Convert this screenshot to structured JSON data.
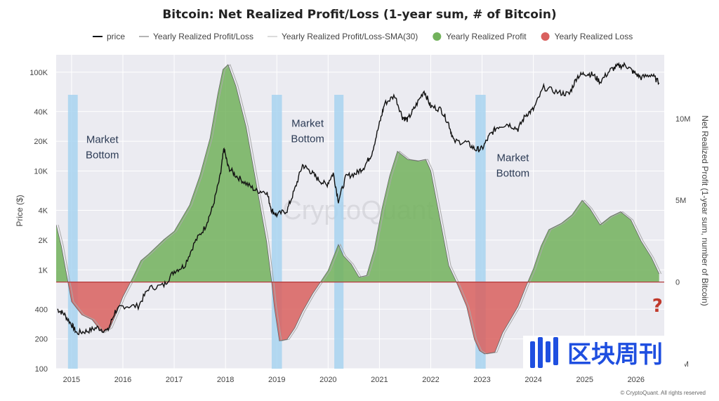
{
  "chart_data": {
    "type": "area",
    "title": "Bitcoin: Net Realized Profit/Loss (1-year sum, # of Bitcoin)",
    "legend": [
      {
        "label": "price",
        "color": "#111111",
        "kind": "line"
      },
      {
        "label": "Yearly Realized Profit/Loss",
        "color": "#9a9a9a",
        "kind": "line"
      },
      {
        "label": "Yearly Realized Profit/Loss-SMA(30)",
        "color": "#cfcfcf",
        "kind": "line"
      },
      {
        "label": "Yearly Realized Profit",
        "color": "#72b25c",
        "kind": "dot"
      },
      {
        "label": "Yearly Realized Loss",
        "color": "#d9605e",
        "kind": "dot"
      }
    ],
    "legend_position": "top",
    "y_left_label": "Price ($)",
    "y_right_label": "Net Realized Profit (1-year sum, number of Bitcoin)",
    "x_ticks": [
      "2015",
      "2016",
      "2017",
      "2018",
      "2019",
      "2020",
      "2021",
      "2022",
      "2023",
      "2024",
      "2025",
      "2026"
    ],
    "y_left_ticks": [
      {
        "label": "100K",
        "value": 100000
      },
      {
        "label": "40K",
        "value": 40000
      },
      {
        "label": "20K",
        "value": 20000
      },
      {
        "label": "10K",
        "value": 10000
      },
      {
        "label": "4K",
        "value": 4000
      },
      {
        "label": "2K",
        "value": 2000
      },
      {
        "label": "1K",
        "value": 1000
      },
      {
        "label": "400",
        "value": 400
      },
      {
        "label": "200",
        "value": 200
      },
      {
        "label": "100",
        "value": 100
      }
    ],
    "y_left_scale": "log",
    "y_left_range": [
      100,
      150000
    ],
    "y_right_ticks": [
      {
        "label": "10M",
        "value": 10000000
      },
      {
        "label": "5M",
        "value": 5000000
      },
      {
        "label": "0",
        "value": 0
      },
      {
        "label": "-5M",
        "value": -5000000
      }
    ],
    "y_right_range": [
      -5300000,
      13900000
    ],
    "x_range": [
      2014.7,
      2026.55
    ],
    "price": [
      [
        2014.72,
        400
      ],
      [
        2014.85,
        360
      ],
      [
        2015.0,
        280
      ],
      [
        2015.1,
        230
      ],
      [
        2015.3,
        240
      ],
      [
        2015.5,
        260
      ],
      [
        2015.7,
        240
      ],
      [
        2015.85,
        380
      ],
      [
        2016.0,
        430
      ],
      [
        2016.3,
        430
      ],
      [
        2016.5,
        650
      ],
      [
        2016.8,
        700
      ],
      [
        2017.0,
        970
      ],
      [
        2017.2,
        1100
      ],
      [
        2017.4,
        1900
      ],
      [
        2017.6,
        2700
      ],
      [
        2017.75,
        4300
      ],
      [
        2017.9,
        9000
      ],
      [
        2017.97,
        17000
      ],
      [
        2018.05,
        11000
      ],
      [
        2018.2,
        9000
      ],
      [
        2018.4,
        7500
      ],
      [
        2018.6,
        6300
      ],
      [
        2018.8,
        6200
      ],
      [
        2018.9,
        4000
      ],
      [
        2019.0,
        3600
      ],
      [
        2019.2,
        4000
      ],
      [
        2019.35,
        6500
      ],
      [
        2019.5,
        11500
      ],
      [
        2019.65,
        10000
      ],
      [
        2019.8,
        8300
      ],
      [
        2019.97,
        7200
      ],
      [
        2020.1,
        9500
      ],
      [
        2020.2,
        5000
      ],
      [
        2020.35,
        8800
      ],
      [
        2020.55,
        9500
      ],
      [
        2020.7,
        11000
      ],
      [
        2020.85,
        15000
      ],
      [
        2021.0,
        30000
      ],
      [
        2021.1,
        48000
      ],
      [
        2021.3,
        58000
      ],
      [
        2021.45,
        35000
      ],
      [
        2021.55,
        33000
      ],
      [
        2021.7,
        45000
      ],
      [
        2021.87,
        65000
      ],
      [
        2022.0,
        45000
      ],
      [
        2022.2,
        42000
      ],
      [
        2022.35,
        30000
      ],
      [
        2022.45,
        20000
      ],
      [
        2022.7,
        19500
      ],
      [
        2022.87,
        16500
      ],
      [
        2023.0,
        16800
      ],
      [
        2023.15,
        23000
      ],
      [
        2023.3,
        28000
      ],
      [
        2023.5,
        30000
      ],
      [
        2023.7,
        26500
      ],
      [
        2023.85,
        37000
      ],
      [
        2024.0,
        42000
      ],
      [
        2024.2,
        70000
      ],
      [
        2024.5,
        62000
      ],
      [
        2024.7,
        60000
      ],
      [
        2024.85,
        90000
      ],
      [
        2025.0,
        97000
      ],
      [
        2025.15,
        95000
      ],
      [
        2025.3,
        80000
      ],
      [
        2025.5,
        105000
      ],
      [
        2025.65,
        115000
      ],
      [
        2025.8,
        118000
      ],
      [
        2025.95,
        100000
      ],
      [
        2026.1,
        88000
      ],
      [
        2026.3,
        95000
      ],
      [
        2026.45,
        78000
      ]
    ],
    "net_realized_pl": [
      [
        2014.7,
        3500000
      ],
      [
        2014.8,
        2200000
      ],
      [
        2014.9,
        500000
      ],
      [
        2015.0,
        -1200000
      ],
      [
        2015.2,
        -2000000
      ],
      [
        2015.4,
        -2300000
      ],
      [
        2015.6,
        -3100000
      ],
      [
        2015.75,
        -2800000
      ],
      [
        2015.9,
        -1700000
      ],
      [
        2016.0,
        -900000
      ],
      [
        2016.1,
        -300000
      ],
      [
        2016.2,
        300000
      ],
      [
        2016.35,
        1300000
      ],
      [
        2016.5,
        1700000
      ],
      [
        2016.8,
        2600000
      ],
      [
        2017.0,
        3100000
      ],
      [
        2017.3,
        4700000
      ],
      [
        2017.5,
        6500000
      ],
      [
        2017.7,
        8800000
      ],
      [
        2017.85,
        11500000
      ],
      [
        2017.95,
        13000000
      ],
      [
        2018.05,
        13300000
      ],
      [
        2018.2,
        12000000
      ],
      [
        2018.4,
        9500000
      ],
      [
        2018.6,
        6000000
      ],
      [
        2018.8,
        2500000
      ],
      [
        2018.9,
        0
      ],
      [
        2018.95,
        -1500000
      ],
      [
        2019.05,
        -3600000
      ],
      [
        2019.2,
        -3500000
      ],
      [
        2019.35,
        -2800000
      ],
      [
        2019.5,
        -1800000
      ],
      [
        2019.7,
        -700000
      ],
      [
        2019.85,
        0
      ],
      [
        2020.0,
        700000
      ],
      [
        2020.1,
        1500000
      ],
      [
        2020.2,
        2300000
      ],
      [
        2020.3,
        1600000
      ],
      [
        2020.45,
        1100000
      ],
      [
        2020.6,
        300000
      ],
      [
        2020.75,
        400000
      ],
      [
        2020.9,
        2000000
      ],
      [
        2021.05,
        4500000
      ],
      [
        2021.2,
        6500000
      ],
      [
        2021.35,
        8000000
      ],
      [
        2021.55,
        7500000
      ],
      [
        2021.75,
        7400000
      ],
      [
        2021.9,
        7500000
      ],
      [
        2022.0,
        6800000
      ],
      [
        2022.2,
        3500000
      ],
      [
        2022.35,
        1000000
      ],
      [
        2022.5,
        0
      ],
      [
        2022.7,
        -1500000
      ],
      [
        2022.85,
        -3500000
      ],
      [
        2022.95,
        -4200000
      ],
      [
        2023.05,
        -4400000
      ],
      [
        2023.25,
        -4300000
      ],
      [
        2023.4,
        -3100000
      ],
      [
        2023.55,
        -2300000
      ],
      [
        2023.7,
        -1500000
      ],
      [
        2023.85,
        -300000
      ],
      [
        2024.0,
        800000
      ],
      [
        2024.15,
        2200000
      ],
      [
        2024.3,
        3200000
      ],
      [
        2024.55,
        3600000
      ],
      [
        2024.75,
        4100000
      ],
      [
        2024.95,
        5000000
      ],
      [
        2025.1,
        4500000
      ],
      [
        2025.3,
        3500000
      ],
      [
        2025.5,
        4000000
      ],
      [
        2025.7,
        4300000
      ],
      [
        2025.9,
        3800000
      ],
      [
        2026.1,
        2500000
      ],
      [
        2026.3,
        1500000
      ],
      [
        2026.45,
        500000
      ]
    ],
    "annotations": [
      {
        "text": "Market Bottom",
        "x": 2015.6,
        "y": 8500000
      },
      {
        "text": "Market Bottom",
        "x": 2019.6,
        "y": 9500000
      },
      {
        "text": "Market Bottom",
        "x": 2023.6,
        "y": 7400000
      },
      {
        "text": "?",
        "x": 2026.5,
        "y": -1400000,
        "color": "#c0392b"
      }
    ],
    "highlight_bands": [
      {
        "x_start": 2014.93,
        "x_end": 2015.12
      },
      {
        "x_start": 2018.9,
        "x_end": 2019.1
      },
      {
        "x_start": 2020.12,
        "x_end": 2020.3
      },
      {
        "x_start": 2022.87,
        "x_end": 2023.07
      }
    ],
    "colors": {
      "plot_bg": "#ebebf1",
      "profit": "#72b25c",
      "loss": "#d9605e",
      "band": "#a8d3f0",
      "price": "#111111",
      "sma": "#aaaaaa"
    },
    "grid": true,
    "watermark": "CryptoQuant",
    "copyright": "© CryptoQuant. All rights reserved"
  },
  "overlay": {
    "brand_text": "区块周刊",
    "logo_icon": "wave-bars-logo-icon"
  }
}
